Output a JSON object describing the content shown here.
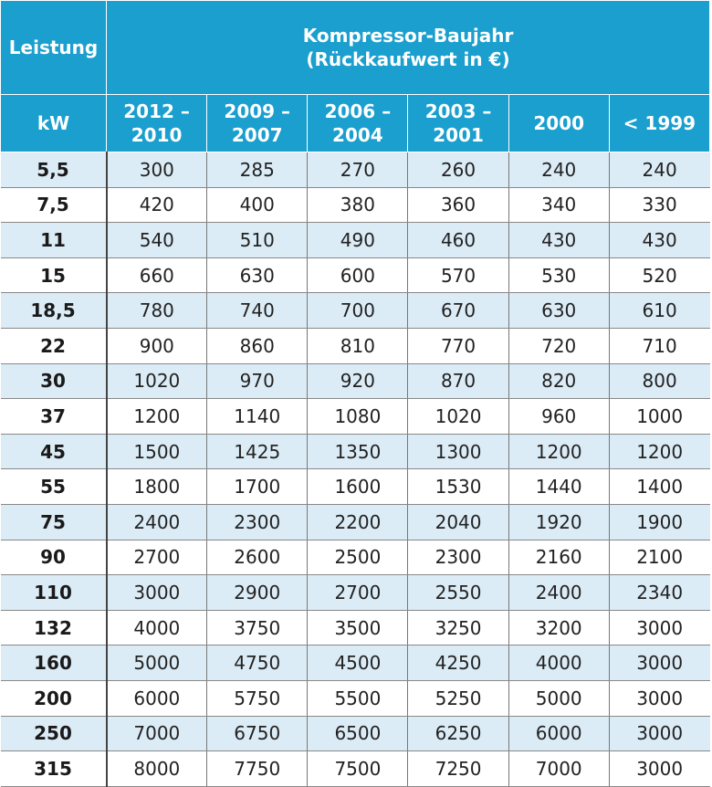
{
  "table": {
    "corner_label": "Leistung",
    "unit_label": "kW",
    "group_header": {
      "line1": "Kompressor-Baujahr",
      "line2": "(Rückkaufwert in €)"
    },
    "year_columns": [
      {
        "line1": "2012 –",
        "line2": "2010"
      },
      {
        "line1": "2009 –",
        "line2": "2007"
      },
      {
        "line1": "2006 –",
        "line2": "2004"
      },
      {
        "line1": "2003 –",
        "line2": "2001"
      },
      {
        "line1": "2000",
        "line2": ""
      },
      {
        "line1": "< 1999",
        "line2": ""
      }
    ],
    "rows": [
      {
        "kw": "5,5",
        "values": [
          "300",
          "285",
          "270",
          "260",
          "240",
          "240"
        ]
      },
      {
        "kw": "7,5",
        "values": [
          "420",
          "400",
          "380",
          "360",
          "340",
          "330"
        ]
      },
      {
        "kw": "11",
        "values": [
          "540",
          "510",
          "490",
          "460",
          "430",
          "430"
        ]
      },
      {
        "kw": "15",
        "values": [
          "660",
          "630",
          "600",
          "570",
          "530",
          "520"
        ]
      },
      {
        "kw": "18,5",
        "values": [
          "780",
          "740",
          "700",
          "670",
          "630",
          "610"
        ]
      },
      {
        "kw": "22",
        "values": [
          "900",
          "860",
          "810",
          "770",
          "720",
          "710"
        ]
      },
      {
        "kw": "30",
        "values": [
          "1020",
          "970",
          "920",
          "870",
          "820",
          "800"
        ]
      },
      {
        "kw": "37",
        "values": [
          "1200",
          "1140",
          "1080",
          "1020",
          "960",
          "1000"
        ]
      },
      {
        "kw": "45",
        "values": [
          "1500",
          "1425",
          "1350",
          "1300",
          "1200",
          "1200"
        ]
      },
      {
        "kw": "55",
        "values": [
          "1800",
          "1700",
          "1600",
          "1530",
          "1440",
          "1400"
        ]
      },
      {
        "kw": "75",
        "values": [
          "2400",
          "2300",
          "2200",
          "2040",
          "1920",
          "1900"
        ]
      },
      {
        "kw": "90",
        "values": [
          "2700",
          "2600",
          "2500",
          "2300",
          "2160",
          "2100"
        ]
      },
      {
        "kw": "110",
        "values": [
          "3000",
          "2900",
          "2700",
          "2550",
          "2400",
          "2340"
        ]
      },
      {
        "kw": "132",
        "values": [
          "4000",
          "3750",
          "3500",
          "3250",
          "3200",
          "3000"
        ]
      },
      {
        "kw": "160",
        "values": [
          "5000",
          "4750",
          "4500",
          "4250",
          "4000",
          "3000"
        ]
      },
      {
        "kw": "200",
        "values": [
          "6000",
          "5750",
          "5500",
          "5250",
          "5000",
          "3000"
        ]
      },
      {
        "kw": "250",
        "values": [
          "7000",
          "6750",
          "6500",
          "6250",
          "6000",
          "3000"
        ]
      },
      {
        "kw": "315",
        "values": [
          "8000",
          "7750",
          "7500",
          "7250",
          "7000",
          "3000"
        ]
      }
    ]
  },
  "colors": {
    "header_bg": "#1a9fce",
    "header_text": "#ffffff",
    "row_alt_bg": "#dcecf6",
    "row_bg": "#ffffff"
  }
}
